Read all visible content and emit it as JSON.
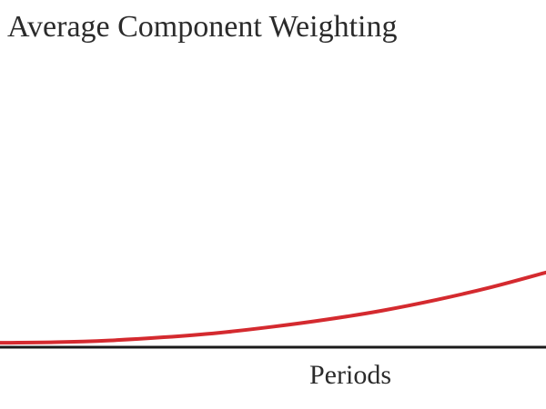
{
  "chart_data": {
    "type": "line",
    "title": "Average Component Weighting",
    "xlabel": "Periods",
    "ylabel": "",
    "grid": false,
    "legend": "none",
    "series": [
      {
        "color": "#d42a2f",
        "x": [
          0,
          1,
          2,
          3,
          4,
          5,
          6,
          7,
          8,
          9,
          10
        ],
        "y": [
          0.0,
          0.02,
          0.08,
          0.19,
          0.34,
          0.55,
          0.8,
          1.1,
          1.47,
          1.9,
          2.4
        ]
      }
    ],
    "xlim": [
      0,
      10
    ],
    "ylim": [
      -0.15,
      10
    ],
    "axis_color": "#1a1a1a"
  }
}
